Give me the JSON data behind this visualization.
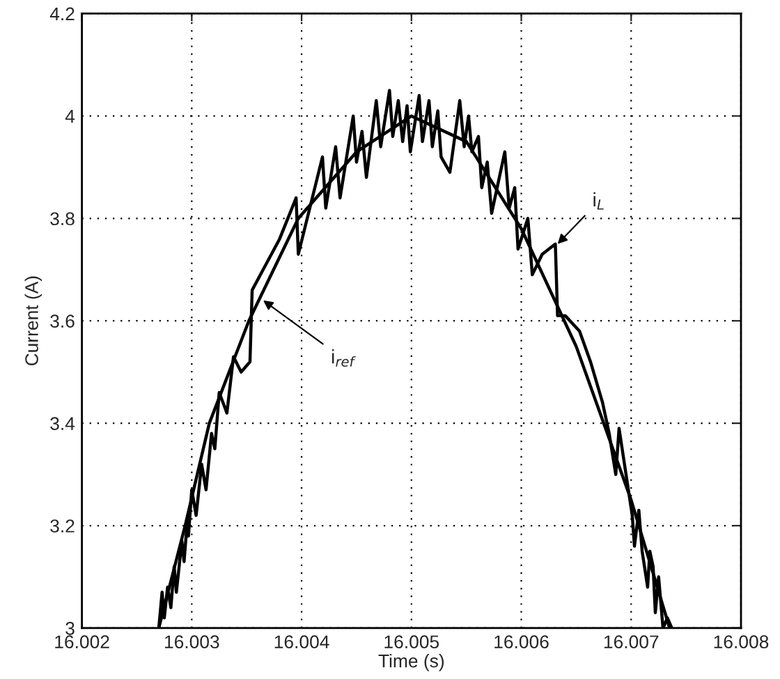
{
  "chart_data": {
    "type": "line",
    "xlabel": "Time (s)",
    "ylabel": "Current (A)",
    "xlim": [
      16.002,
      16.008
    ],
    "ylim": [
      3,
      4.2
    ],
    "xticks": [
      16.002,
      16.003,
      16.004,
      16.005,
      16.006,
      16.007,
      16.008
    ],
    "yticks": [
      3,
      3.2,
      3.4,
      3.6,
      3.8,
      4,
      4.2
    ],
    "grid": true,
    "line_style": "solid",
    "marker": "none",
    "series": [
      {
        "color": "#000000",
        "x": [
          16.0027,
          16.00294,
          16.00316,
          16.00352,
          16.00397,
          16.0045,
          16.005,
          16.0055,
          16.006,
          16.0065,
          16.007,
          16.00735
        ],
        "values": [
          3.0,
          3.2,
          3.4,
          3.6,
          3.8,
          3.93,
          4.0,
          3.95,
          3.78,
          3.55,
          3.25,
          3.0
        ]
      },
      {
        "color": "#000000",
        "x": [
          16.0027,
          16.00273,
          16.00275,
          16.00278,
          16.00281,
          16.00284,
          16.00286,
          16.00291,
          16.00293,
          16.00296,
          16.00297,
          16.003,
          16.00304,
          16.00309,
          16.00313,
          16.00318,
          16.00321,
          16.00325,
          16.00332,
          16.00338,
          16.00345,
          16.00353,
          16.00355,
          16.00365,
          16.0038,
          16.00395,
          16.00397,
          16.00419,
          16.00422,
          16.00431,
          16.00435,
          16.00447,
          16.0045,
          16.00455,
          16.00459,
          16.00468,
          16.00472,
          16.0048,
          16.00483,
          16.00488,
          16.00492,
          16.00496,
          16.00499,
          16.00507,
          16.0051,
          16.00516,
          16.00519,
          16.00524,
          16.00527,
          16.00535,
          16.00544,
          16.00548,
          16.00552,
          16.00555,
          16.00561,
          16.00564,
          16.00569,
          16.00573,
          16.00585,
          16.00589,
          16.00594,
          16.00597,
          16.00606,
          16.0061,
          16.00619,
          16.00631,
          16.00633,
          16.0064,
          16.00653,
          16.00663,
          16.00674,
          16.0068,
          16.00686,
          16.00689,
          16.00701,
          16.00703,
          16.00707,
          16.0071,
          16.00715,
          16.00717,
          16.0072,
          16.00722,
          16.00725,
          16.00729,
          16.00733,
          16.00737
        ],
        "values": [
          3.0,
          3.07,
          3.02,
          3.08,
          3.04,
          3.12,
          3.07,
          3.17,
          3.13,
          3.21,
          3.18,
          3.27,
          3.22,
          3.32,
          3.27,
          3.38,
          3.35,
          3.46,
          3.42,
          3.53,
          3.5,
          3.52,
          3.66,
          3.7,
          3.76,
          3.84,
          3.73,
          3.92,
          3.82,
          3.94,
          3.84,
          4.0,
          3.91,
          3.97,
          3.88,
          4.03,
          3.94,
          4.05,
          3.96,
          4.03,
          3.95,
          4.02,
          3.93,
          4.04,
          3.95,
          4.03,
          3.94,
          4.01,
          3.92,
          3.89,
          4.03,
          3.94,
          4.0,
          3.93,
          3.96,
          3.86,
          3.91,
          3.81,
          3.93,
          3.82,
          3.86,
          3.74,
          3.8,
          3.69,
          3.73,
          3.75,
          3.61,
          3.61,
          3.58,
          3.52,
          3.44,
          3.38,
          3.3,
          3.39,
          3.22,
          3.16,
          3.23,
          3.15,
          3.08,
          3.15,
          3.12,
          3.03,
          3.1,
          3.0,
          3.02,
          3.0
        ]
      }
    ],
    "annotations": [
      {
        "text": "i$_{L}$",
        "x": 16.00633,
        "y": 3.75
      },
      {
        "text": "i$_{ref}$",
        "x": 16.00365,
        "y": 3.64
      }
    ]
  }
}
